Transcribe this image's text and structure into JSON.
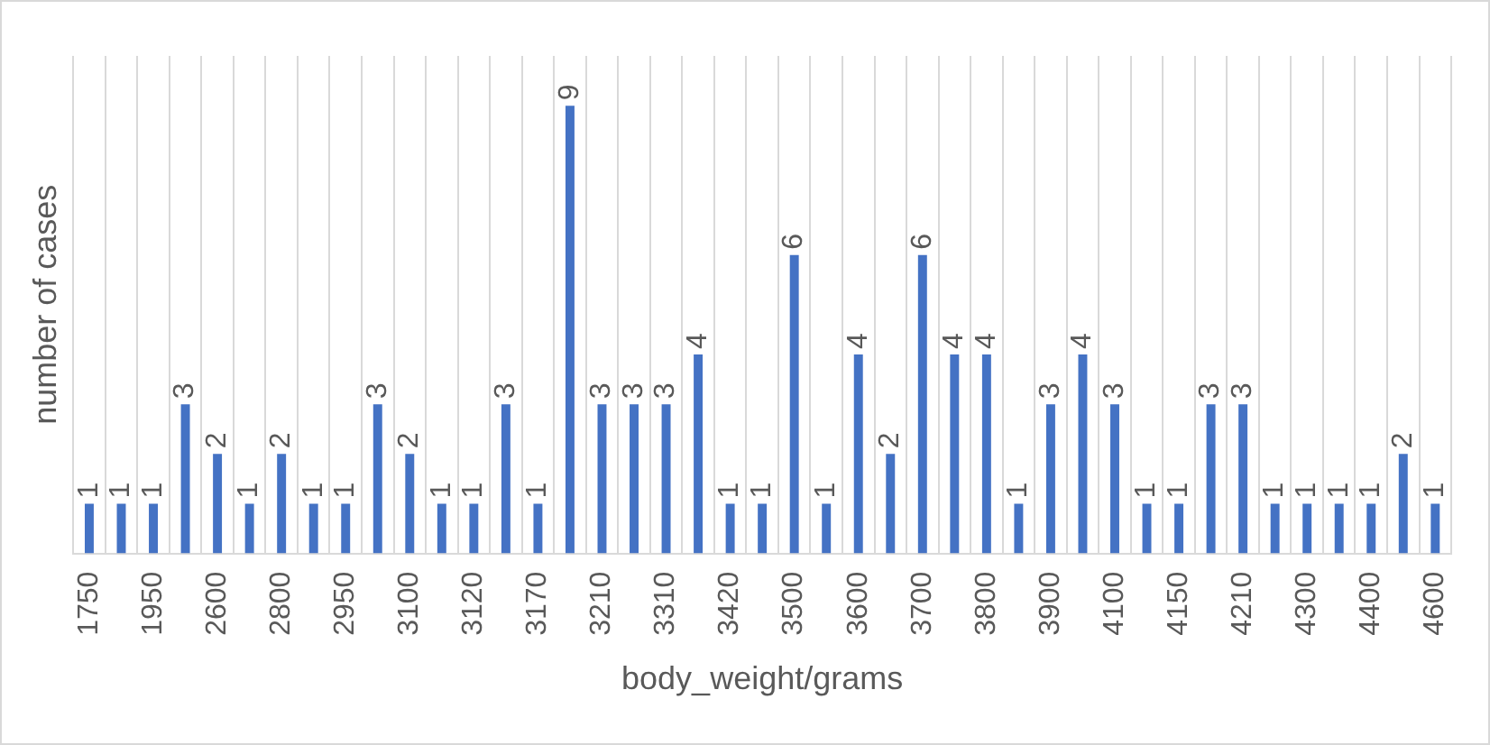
{
  "chart_data": {
    "type": "bar",
    "xlabel": "body_weight/grams",
    "ylabel": "number of cases",
    "categories": [
      "1750",
      null,
      "1950",
      null,
      "2600",
      null,
      "2800",
      null,
      "2950",
      null,
      "3100",
      null,
      "3120",
      null,
      "3170",
      null,
      "3210",
      null,
      "3310",
      null,
      "3420",
      null,
      "3500",
      null,
      "3600",
      null,
      "3700",
      null,
      "3800",
      null,
      "3900",
      null,
      "4100",
      null,
      "4150",
      null,
      "4210",
      null,
      "4300",
      null,
      "4400",
      null,
      "4600"
    ],
    "values": [
      1,
      1,
      1,
      3,
      2,
      1,
      2,
      1,
      1,
      3,
      2,
      1,
      1,
      3,
      1,
      9,
      3,
      3,
      3,
      4,
      1,
      1,
      6,
      1,
      4,
      2,
      6,
      4,
      4,
      1,
      3,
      4,
      3,
      1,
      1,
      3,
      3,
      1,
      1,
      1,
      1,
      2,
      1
    ],
    "color": "#4472c4",
    "ylim": [
      0,
      10
    ],
    "grid": "x",
    "data_labels": true,
    "tick_labels": "x",
    "legend": false
  }
}
